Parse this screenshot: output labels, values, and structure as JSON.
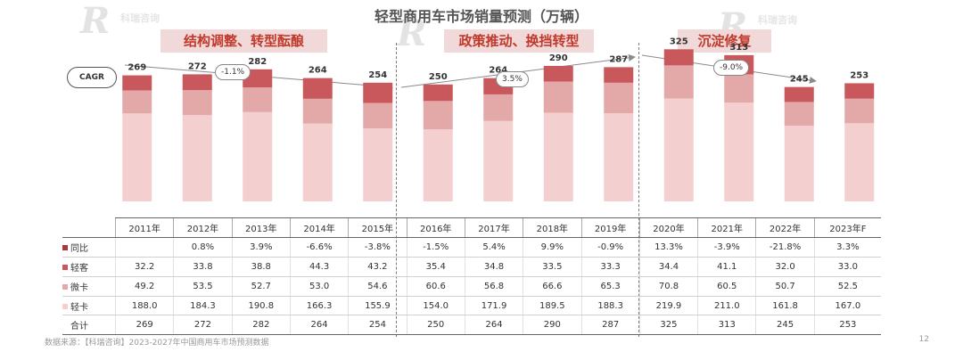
{
  "title": "轻型商用车市场销量预测（万辆）",
  "phases": [
    "结构调整、转型酝酿",
    "政策推动、换挡转型",
    "沉淀修复"
  ],
  "cagr": {
    "label": "CAGR",
    "values": [
      "-1.1%",
      "3.5%",
      "-9.0%"
    ]
  },
  "watermark": {
    "logo": "R",
    "brand": "科瑞咨询"
  },
  "colors": {
    "light_truck": "#f3cfcf",
    "mini_truck": "#e3a9a9",
    "light_bus": "#c9585d",
    "line": "#8a8a8a"
  },
  "chart_data": {
    "type": "bar",
    "stacked": true,
    "title": "轻型商用车市场销量预测（万辆）",
    "categories": [
      "2011年",
      "2012年",
      "2013年",
      "2014年",
      "2015年",
      "2016年",
      "2017年",
      "2018年",
      "2019年",
      "2020年",
      "2021年",
      "2022年",
      "2023年F"
    ],
    "series": [
      {
        "name": "轻卡",
        "values": [
          188.0,
          184.3,
          190.8,
          166.3,
          155.9,
          154.0,
          171.9,
          189.5,
          188.3,
          219.9,
          211.0,
          161.8,
          167.0
        ]
      },
      {
        "name": "微卡",
        "values": [
          49.2,
          53.5,
          52.7,
          53.0,
          54.6,
          60.6,
          56.8,
          66.6,
          65.3,
          70.8,
          60.5,
          50.7,
          52.5
        ]
      },
      {
        "name": "轻客",
        "values": [
          32.2,
          33.8,
          38.8,
          44.3,
          43.2,
          35.4,
          34.8,
          33.5,
          33.3,
          34.4,
          41.1,
          32.0,
          33.0
        ]
      }
    ],
    "totals": [
      269,
      272,
      282,
      264,
      254,
      250,
      264,
      290,
      287,
      325,
      313,
      245,
      253
    ],
    "yoy_label": "同比",
    "yoy": [
      "",
      "0.8%",
      "3.9%",
      "-6.6%",
      "-3.8%",
      "-1.5%",
      "5.4%",
      "9.9%",
      "-0.9%",
      "13.3%",
      "-3.9%",
      "-21.8%",
      "3.3%"
    ],
    "total_label": "合计",
    "ylim": [
      0,
      340
    ]
  },
  "table": {
    "rows": [
      {
        "key": "yoy",
        "label": "同比"
      },
      {
        "key": "bus",
        "label": "轻客"
      },
      {
        "key": "mini",
        "label": "微卡"
      },
      {
        "key": "light",
        "label": "轻卡"
      },
      {
        "key": "total",
        "label": "合计"
      }
    ],
    "cells": {
      "yoy": [
        "",
        "0.8%",
        "3.9%",
        "-6.6%",
        "-3.8%",
        "-1.5%",
        "5.4%",
        "9.9%",
        "-0.9%",
        "13.3%",
        "-3.9%",
        "-21.8%",
        "3.3%"
      ],
      "bus": [
        "32.2",
        "33.8",
        "38.8",
        "44.3",
        "43.2",
        "35.4",
        "34.8",
        "33.5",
        "33.3",
        "34.4",
        "41.1",
        "32.0",
        "33.0"
      ],
      "mini": [
        "49.2",
        "53.5",
        "52.7",
        "53.0",
        "54.6",
        "60.6",
        "56.8",
        "66.6",
        "65.3",
        "70.8",
        "60.5",
        "50.7",
        "52.5"
      ],
      "light": [
        "188.0",
        "184.3",
        "190.8",
        "166.3",
        "155.9",
        "154.0",
        "171.9",
        "189.5",
        "188.3",
        "219.9",
        "211.0",
        "161.8",
        "167.0"
      ],
      "total": [
        "269",
        "272",
        "282",
        "264",
        "254",
        "250",
        "264",
        "290",
        "287",
        "325",
        "313",
        "245",
        "253"
      ]
    }
  },
  "footer": {
    "source": "数据来源：【科瑞咨询】2023-2027年中国商用车市场预测数据",
    "page": "12"
  }
}
